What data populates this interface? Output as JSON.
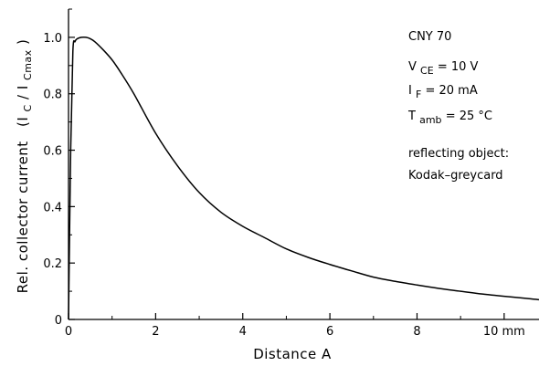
{
  "chart_data": {
    "type": "line",
    "xlabel": "Distance A",
    "ylabel_main": "Rel. collector current",
    "ylabel_ratio": {
      "open": "(I",
      "num_sub": "C",
      "slash": " / I",
      "den_sub": "Cmax",
      "close": ")"
    },
    "xlim": [
      0,
      10.8
    ],
    "ylim": [
      0,
      1.1
    ],
    "xticks": [
      {
        "value": 0,
        "label": "0"
      },
      {
        "value": 2,
        "label": "2"
      },
      {
        "value": 4,
        "label": "4"
      },
      {
        "value": 6,
        "label": "6"
      },
      {
        "value": 8,
        "label": "8"
      },
      {
        "value": 10,
        "label": "10 mm"
      }
    ],
    "yticks": [
      {
        "value": 0,
        "label": "0"
      },
      {
        "value": 0.2,
        "label": "0.2"
      },
      {
        "value": 0.4,
        "label": "0.4"
      },
      {
        "value": 0.6,
        "label": "0.6"
      },
      {
        "value": 0.8,
        "label": "0.8"
      },
      {
        "value": 1.0,
        "label": "1.0"
      }
    ],
    "grid": false,
    "series": [
      {
        "x": [
          0,
          0.05,
          0.1,
          0.15,
          0.2,
          0.3,
          0.4,
          0.5,
          0.6,
          0.8,
          1.0,
          1.2,
          1.5,
          2.0,
          2.5,
          3.0,
          3.5,
          4.0,
          4.5,
          5.0,
          5.5,
          6.0,
          6.5,
          7.0,
          7.5,
          8.0,
          8.5,
          9.0,
          9.5,
          10.0,
          10.5,
          10.8
        ],
        "y": [
          0.0,
          0.6,
          0.95,
          0.985,
          0.995,
          1.0,
          1.0,
          0.995,
          0.985,
          0.955,
          0.92,
          0.875,
          0.8,
          0.66,
          0.545,
          0.45,
          0.38,
          0.33,
          0.29,
          0.25,
          0.22,
          0.195,
          0.172,
          0.15,
          0.135,
          0.122,
          0.11,
          0.1,
          0.09,
          0.082,
          0.075,
          0.07
        ]
      }
    ]
  },
  "annotations": {
    "device": "CNY 70",
    "vce": {
      "base": "V",
      "sub": "CE",
      "rest": " = 10 V"
    },
    "if": {
      "base": "I",
      "sub": "F",
      "rest": " = 20 mA"
    },
    "tamb": {
      "base": "T",
      "sub": "amb",
      "rest": " = 25 °C"
    },
    "reflect_1": "reflecting object:",
    "reflect_2": "Kodak–greycard"
  }
}
